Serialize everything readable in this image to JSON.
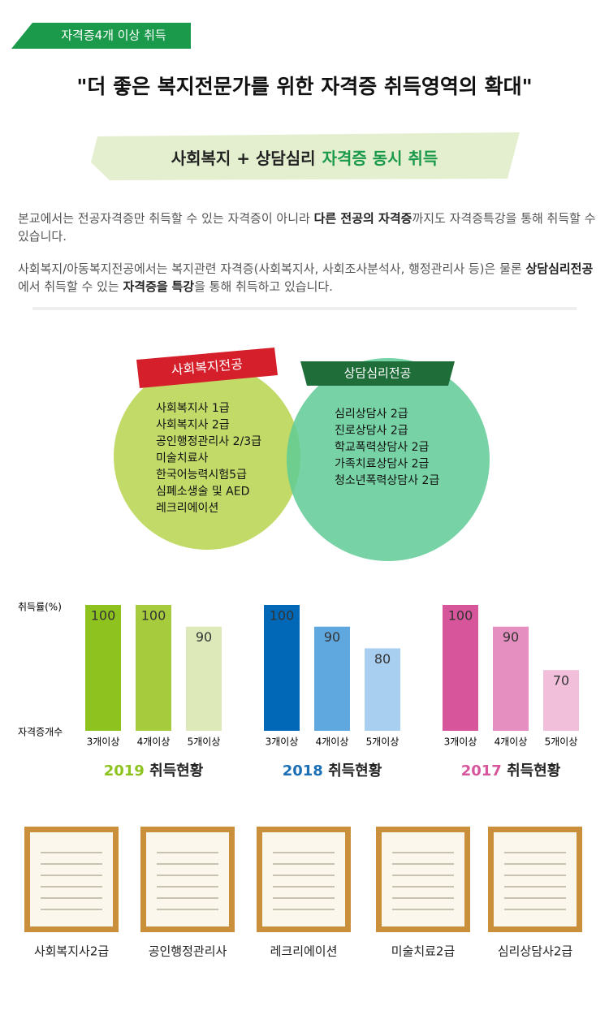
{
  "tag": "자격증4개 이상 취득",
  "headline": "\"더 좋은 복지전문가를 위한 자격증 취득영역의 확대\"",
  "banner": {
    "prefix": "사회복지 + 상담심리",
    "highlight": "자격증 동시 취득"
  },
  "paragraphs": [
    [
      "본교에서는 전공자격증만 취득할 수 있는 자격증이 아니라 ",
      "다른 전공의 자격증",
      "까지도 자격증특강을 통해 취득할 수 있습니다."
    ],
    [
      "사회복지/아동복지전공에서는 복지관련 자격증(사회복지사, 사회조사분석사, 행정관리사 등)은 물론 ",
      "상담심리전공",
      "에서 취득할 수 있는 ",
      "자격증을",
      " ",
      "특강",
      "을 통해 취득하고 있습니다."
    ]
  ],
  "venn": {
    "left": {
      "label": "사회복지전공",
      "items": [
        "사회복지사 1급",
        "사회복지사 2급",
        "공인행정관리사 2/3급",
        "미술치료사",
        "한국어능력시험5급",
        "심폐소생술 및 AED",
        "레크리에이션"
      ]
    },
    "right": {
      "label": "상담심리전공",
      "items": [
        "심리상담사 2급",
        "진로상담사 2급",
        "학교폭력상담사 2급",
        "가족치료상담사 2급",
        "청소년폭력상담사 2급"
      ]
    }
  },
  "chart_data": [
    {
      "type": "bar",
      "title": "2019 취득현황",
      "title_color": "#8dc21f",
      "ylabel": "취득률(%)",
      "xlabel": "자격증개수",
      "categories": [
        "3개이상",
        "4개이상",
        "5개이상"
      ],
      "values": [
        100,
        100,
        90
      ],
      "colors": [
        "#8dc21f",
        "#a6cc3e",
        "#dde9b9"
      ],
      "ylim": [
        42,
        100
      ]
    },
    {
      "type": "bar",
      "title": "2018 취득현황",
      "title_color": "#1a6fb5",
      "categories": [
        "3개이상",
        "4개이상",
        "5개이상"
      ],
      "values": [
        100,
        90,
        80
      ],
      "colors": [
        "#0068b7",
        "#5fa8df",
        "#a9cff0"
      ],
      "ylim": [
        42,
        100
      ]
    },
    {
      "type": "bar",
      "title": "2017 취득현황",
      "title_color": "#d6559b",
      "categories": [
        "3개이상",
        "4개이상",
        "5개이상"
      ],
      "values": [
        100,
        90,
        70
      ],
      "colors": [
        "#d6559b",
        "#e48fbf",
        "#f1bfda"
      ],
      "ylim": [
        42,
        100
      ]
    }
  ],
  "certificates": [
    "사회복지사2급",
    "공인행정관리사",
    "레크리에이션",
    "미술치료2급",
    "심리상담사2급"
  ]
}
